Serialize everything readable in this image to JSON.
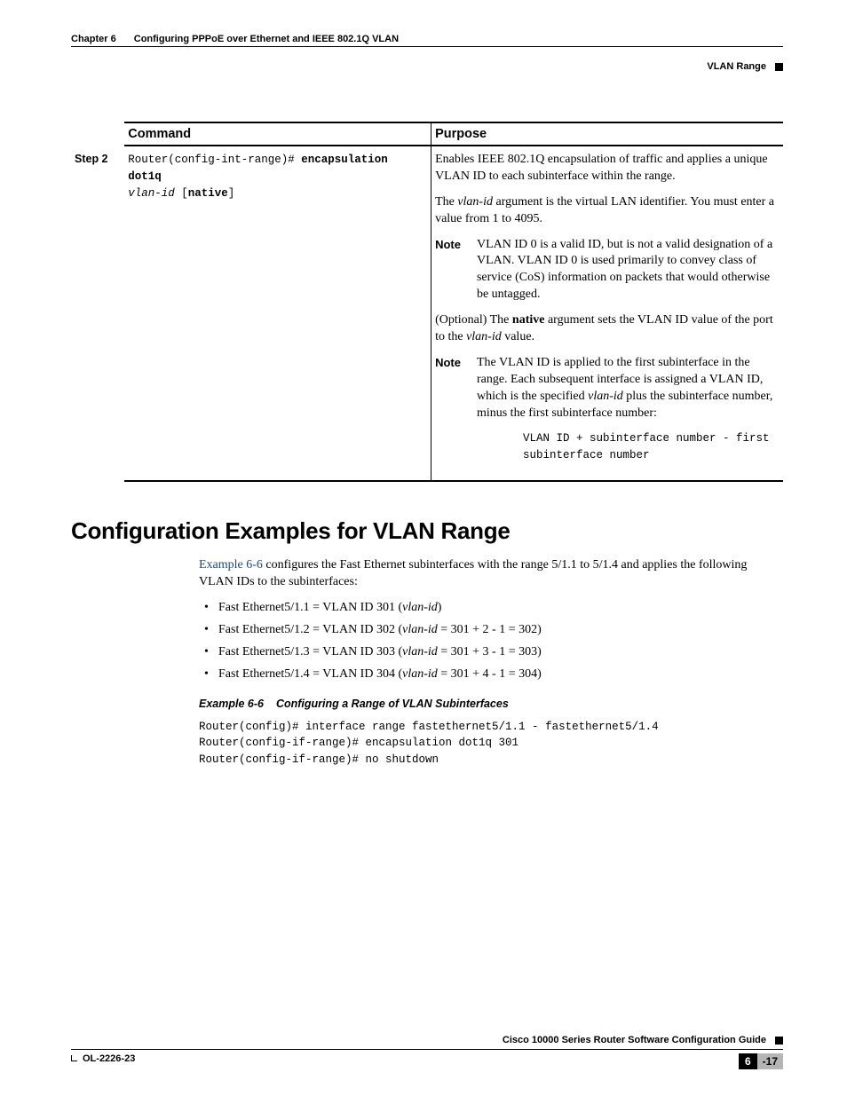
{
  "header": {
    "chapter": "Chapter 6",
    "title": "Configuring PPPoE over Ethernet and IEEE 802.1Q VLAN",
    "section": "VLAN Range"
  },
  "table": {
    "head_command": "Command",
    "head_purpose": "Purpose",
    "step_label": "Step 2",
    "cmd_prompt": "Router(config-int-range)# ",
    "cmd_kw": "encapsulation dot1q",
    "cmd_arg": "vlan-id",
    "cmd_opt": " [",
    "cmd_opt_kw": "native",
    "cmd_opt_close": "]",
    "p1": "Enables IEEE 802.1Q encapsulation of traffic and applies a unique VLAN ID to each subinterface within the range.",
    "p2a": "The ",
    "p2_ital": "vlan-id",
    "p2b": " argument is the virtual LAN identifier. You must enter a value from 1 to 4095.",
    "note_label": "Note",
    "note1": "VLAN ID 0 is a valid ID, but is not a valid designation of a VLAN. VLAN ID 0 is used primarily to convey class of service (CoS) information on packets that would otherwise be untagged.",
    "p3a": "(Optional) The ",
    "p3_bold": "native",
    "p3b": " argument sets the VLAN ID value of the port to the ",
    "p3_ital": "vlan-id",
    "p3c": " value.",
    "note2a": "The VLAN ID is applied to the first subinterface in the range. Each subsequent interface is assigned a VLAN ID, which is the specified ",
    "note2_ital": "vlan-id",
    "note2b": " plus the subinterface number, minus the first subinterface number:",
    "formula": "VLAN ID + subinterface number - first \nsubinterface number"
  },
  "section": {
    "h1": "Configuration Examples for VLAN Range",
    "intro_link": "Example 6-6",
    "intro_rest": " configures the Fast Ethernet subinterfaces with the range 5/1.1 to 5/1.4 and applies the following VLAN IDs to the subinterfaces:",
    "bullets": [
      {
        "a": "Fast Ethernet5/1.1 = VLAN ID 301 (",
        "it": "vlan-id",
        "b": ")"
      },
      {
        "a": "Fast Ethernet5/1.2 = VLAN ID 302 (",
        "it": "vlan-id",
        "b": " = 301 + 2 - 1 = 302)"
      },
      {
        "a": "Fast Ethernet5/1.3 = VLAN ID 303 (",
        "it": "vlan-id",
        "b": " = 301 + 3 - 1 = 303)"
      },
      {
        "a": "Fast Ethernet5/1.4 = VLAN ID 304 (",
        "it": "vlan-id",
        "b": " = 301 + 4 - 1 = 304)"
      }
    ],
    "example_num": "Example 6-6",
    "example_title": "Configuring a Range of VLAN Subinterfaces",
    "example_code": "Router(config)# interface range fastethernet5/1.1 - fastethernet5/1.4\nRouter(config-if-range)# encapsulation dot1q 301\nRouter(config-if-range)# no shutdown"
  },
  "footer": {
    "guide": "Cisco 10000 Series Router Software Configuration Guide",
    "docid": "OL-2226-23",
    "page_chapter": "6",
    "page_num": "-17"
  }
}
